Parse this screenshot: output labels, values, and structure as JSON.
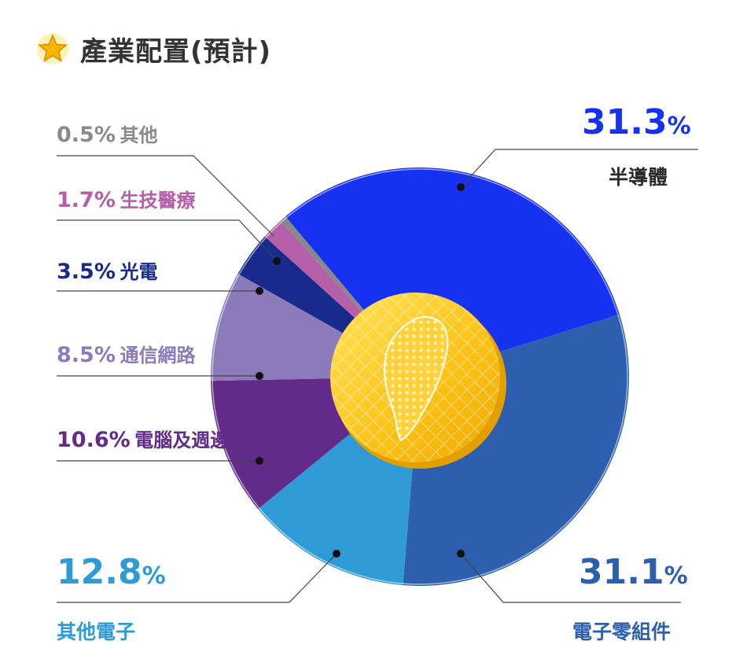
{
  "title": "產業配置(預計)",
  "percent_symbol": "%",
  "colors": {
    "title": "#333333",
    "semiconductor": "#1631f0",
    "electronic_parts": "#2d5fae",
    "other_electronics": "#2e9ad6",
    "computer": "#622b8a",
    "network": "#8c7bba",
    "optoelectronics": "#182a8c",
    "biotech": "#b55fa8",
    "others": "#888888",
    "coin": "#f7c21a"
  },
  "chart_data": {
    "type": "pie",
    "title": "產業配置(預計)",
    "unit": "%",
    "slices": [
      {
        "name": "半導體",
        "value": 31.3,
        "label": "31.3",
        "color": "#1631f0"
      },
      {
        "name": "電子零組件",
        "value": 31.1,
        "label": "31.1",
        "color": "#2d5fae"
      },
      {
        "name": "其他電子",
        "value": 12.8,
        "label": "12.8",
        "color": "#2e9ad6"
      },
      {
        "name": "電腦及週邊設備",
        "value": 10.6,
        "label": "10.6%",
        "color": "#622b8a"
      },
      {
        "name": "通信網路",
        "value": 8.5,
        "label": "8.5%",
        "color": "#8c7bba"
      },
      {
        "name": "光電",
        "value": 3.5,
        "label": "3.5%",
        "color": "#182a8c"
      },
      {
        "name": "生技醫療",
        "value": 1.7,
        "label": "1.7%",
        "color": "#b55fa8"
      },
      {
        "name": "其他",
        "value": 0.5,
        "label": "0.5%",
        "color": "#888888"
      }
    ]
  }
}
